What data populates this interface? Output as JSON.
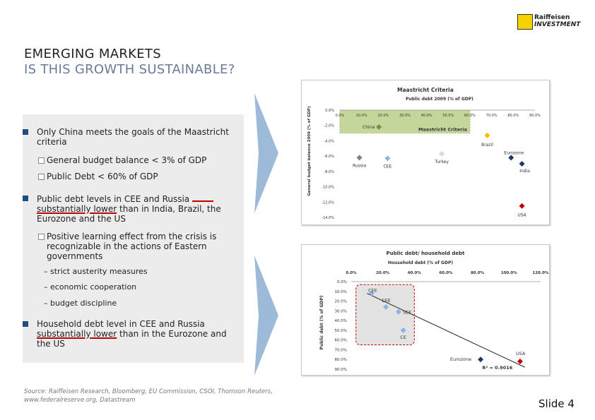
{
  "logo": {
    "line1": "Raiffeisen",
    "line2": "INVESTMENT"
  },
  "title": {
    "line1": "EMERGING MARKETS",
    "line2": "IS THIS GROWTH SUSTAINABLE?"
  },
  "bullets": {
    "b1": "Only China meets the goals of the Maastricht criteria",
    "b1_sub1": "General budget balance < 3% of GDP",
    "b1_sub2": "Public Debt < 60% of GDP",
    "b2_pre": "Public debt levels in CEE and Russia",
    "b2_u": "substantially lower",
    "b2_post": "than in India, Brazil, the Eurozone and the US",
    "b2_sub1": "Positive learning effect from the crisis is recognizable in the actions of Eastern governments",
    "b2_dash1": "– strict austerity measures",
    "b2_dash2": "– economic cooperation",
    "b2_dash3": "– budget discipline",
    "b3_pre": "Household debt level in CEE and Russia",
    "b3_u": "substantially lower",
    "b3_post": "than in the Eurozone and the US"
  },
  "source": {
    "line1": "Source: Raiffeisen Research, Bloomberg, EU Commission, CSOI, Thomson Reuters,",
    "line2": "www.federalreserve.org, Datastream"
  },
  "slide_label": "Slide 4",
  "colors": {
    "accent_blue": "#1f4e79",
    "arrow_blue": "#9dbbd8",
    "red": "#c00000"
  },
  "chart_data": [
    {
      "type": "scatter",
      "title": "Maastricht Criteria",
      "xlabel": "Public debt 2009 (% of GDP)",
      "ylabel": "General budget balance 2009 (% of GDP)",
      "x_ticks": [
        "0.0%",
        "10.0%",
        "20.0%",
        "30.0%",
        "40.0%",
        "50.0%",
        "60.0%",
        "70.0%",
        "80.0%",
        "90.0%"
      ],
      "y_ticks": [
        "0.0%",
        "-2.0%",
        "-4.0%",
        "-6.0%",
        "-8.0%",
        "-10.0%",
        "-12.0%",
        "-14.0%"
      ],
      "xlim": [
        0,
        90
      ],
      "ylim": [
        -14,
        0
      ],
      "region_label": "Maastricht Criteria",
      "region": {
        "x": [
          0,
          60
        ],
        "y": [
          -3,
          0
        ]
      },
      "points": [
        {
          "name": "China",
          "x": 18,
          "y": -2.2,
          "color": "#76923c"
        },
        {
          "name": "Brazil",
          "x": 68,
          "y": -3.3,
          "color": "#f7c000"
        },
        {
          "name": "Russia",
          "x": 9,
          "y": -6.2,
          "color": "#7f7f7f"
        },
        {
          "name": "CEE",
          "x": 22,
          "y": -6.3,
          "color": "#8db3e2"
        },
        {
          "name": "Turkey",
          "x": 47,
          "y": -5.7,
          "color": "#d9d9d9"
        },
        {
          "name": "Eurozone",
          "x": 79,
          "y": -6.2,
          "color": "#1f3864"
        },
        {
          "name": "India",
          "x": 84,
          "y": -7.0,
          "color": "#1f3864"
        },
        {
          "name": "USA",
          "x": 84,
          "y": -12.5,
          "color": "#c00000"
        }
      ]
    },
    {
      "type": "scatter",
      "title": "Public debt/ household debt",
      "xlabel": "Household debt (% of GDP)",
      "ylabel": "Public debt (% of GDP)",
      "x_ticks": [
        "0.0%",
        "20.0%",
        "40.0%",
        "60.0%",
        "80.0%",
        "100.0%",
        "120.0%"
      ],
      "y_ticks": [
        "0.0%",
        "10.0%",
        "20.0%",
        "30.0%",
        "40.0%",
        "50.0%",
        "60.0%",
        "70.0%",
        "80.0%",
        "90.0%"
      ],
      "xlim": [
        0,
        120
      ],
      "ylim": [
        90,
        0
      ],
      "trendline_label": "R² = 0.9016",
      "trendline": {
        "x": [
          10,
          110
        ],
        "y": [
          12,
          88
        ]
      },
      "points": [
        {
          "name": "CEE",
          "x": 13,
          "y": 12,
          "color": "#8db3e2"
        },
        {
          "name": "CEE",
          "x": 22,
          "y": 26,
          "color": "#8db3e2"
        },
        {
          "name": "SEE",
          "x": 30,
          "y": 31,
          "color": "#8db3e2"
        },
        {
          "name": "CE",
          "x": 33,
          "y": 50,
          "color": "#8db3e2"
        },
        {
          "name": "Eurozone",
          "x": 82,
          "y": 80,
          "color": "#1f3864"
        },
        {
          "name": "USA",
          "x": 107,
          "y": 82,
          "color": "#c00000"
        }
      ]
    }
  ]
}
